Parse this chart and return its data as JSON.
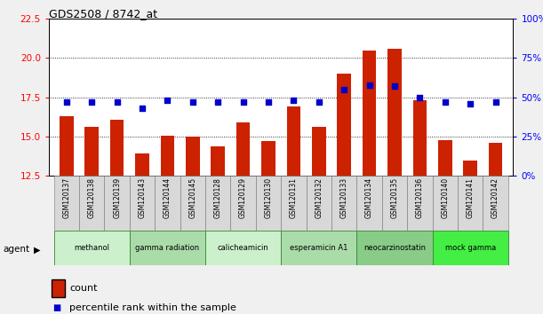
{
  "title": "GDS2508 / 8742_at",
  "samples": [
    "GSM120137",
    "GSM120138",
    "GSM120139",
    "GSM120143",
    "GSM120144",
    "GSM120145",
    "GSM120128",
    "GSM120129",
    "GSM120130",
    "GSM120131",
    "GSM120132",
    "GSM120133",
    "GSM120134",
    "GSM120135",
    "GSM120136",
    "GSM120140",
    "GSM120141",
    "GSM120142"
  ],
  "bar_values": [
    16.3,
    15.6,
    16.1,
    13.9,
    15.05,
    15.0,
    14.4,
    15.9,
    14.7,
    16.9,
    15.6,
    19.0,
    20.5,
    20.6,
    17.3,
    14.8,
    13.5,
    14.6
  ],
  "percentile_values": [
    47,
    47,
    47,
    43,
    48,
    47,
    47,
    47,
    47,
    48,
    47,
    55,
    58,
    57,
    50,
    47,
    46,
    47
  ],
  "bar_color": "#cc2200",
  "percentile_color": "#0000cc",
  "ylim_left": [
    12.5,
    22.5
  ],
  "ylim_right": [
    0,
    100
  ],
  "yticks_left": [
    12.5,
    15.0,
    17.5,
    20.0,
    22.5
  ],
  "yticks_right": [
    0,
    25,
    50,
    75,
    100
  ],
  "agents": [
    {
      "label": "methanol",
      "start": 0,
      "end": 3,
      "color": "#ccf0cc"
    },
    {
      "label": "gamma radiation",
      "start": 3,
      "end": 6,
      "color": "#aadcaa"
    },
    {
      "label": "calicheamicin",
      "start": 6,
      "end": 9,
      "color": "#ccf0cc"
    },
    {
      "label": "esperamicin A1",
      "start": 9,
      "end": 12,
      "color": "#aadcaa"
    },
    {
      "label": "neocarzinostatin",
      "start": 12,
      "end": 15,
      "color": "#88cc88"
    },
    {
      "label": "mock gamma",
      "start": 15,
      "end": 18,
      "color": "#44ee44"
    }
  ],
  "agent_label": "agent",
  "legend_count": "count",
  "legend_percentile": "percentile rank within the sample",
  "fig_bg": "#f0f0f0",
  "plot_bg": "#ffffff"
}
